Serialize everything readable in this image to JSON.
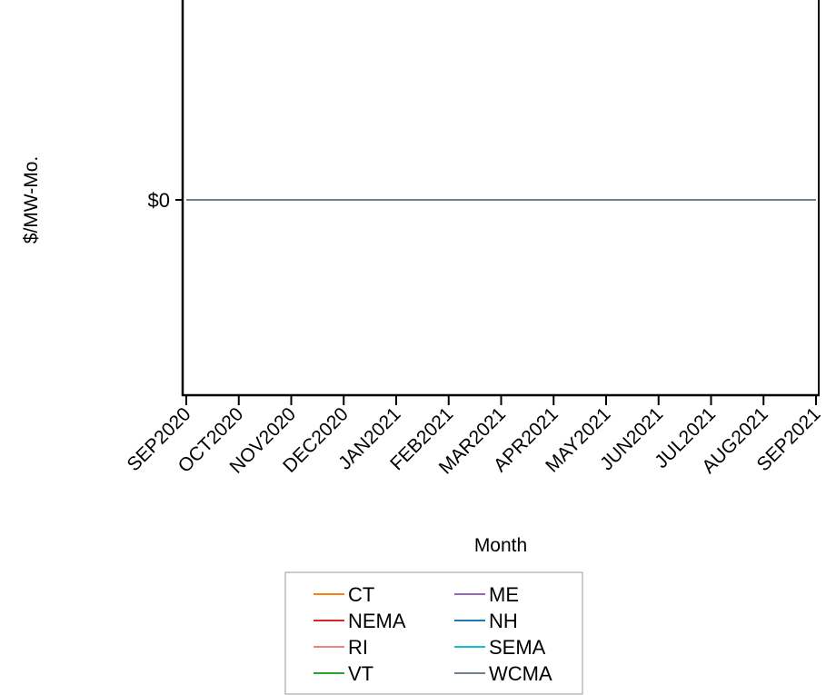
{
  "chart_data": {
    "type": "line",
    "title": "",
    "xlabel": "Month",
    "ylabel": "$/MW-Mo.",
    "categories": [
      "SEP2020",
      "OCT2020",
      "NOV2020",
      "DEC2020",
      "JAN2021",
      "FEB2021",
      "MAR2021",
      "APR2021",
      "MAY2021",
      "JUN2021",
      "JUL2021",
      "AUG2021",
      "SEP2021"
    ],
    "y_ticks": [
      {
        "value": 0,
        "label": "$0"
      }
    ],
    "ylim": [
      -1,
      1
    ],
    "grid": false,
    "legend_position": "bottom",
    "series": [
      {
        "name": "CT",
        "color": "#ff7f0e",
        "values": [
          0,
          0,
          0,
          0,
          0,
          0,
          0,
          0,
          0,
          0,
          0,
          0,
          0
        ]
      },
      {
        "name": "ME",
        "color": "#9467bd",
        "values": [
          0,
          0,
          0,
          0,
          0,
          0,
          0,
          0,
          0,
          0,
          0,
          0,
          0
        ]
      },
      {
        "name": "NEMA",
        "color": "#d62728",
        "values": [
          0,
          0,
          0,
          0,
          0,
          0,
          0,
          0,
          0,
          0,
          0,
          0,
          0
        ]
      },
      {
        "name": "NH",
        "color": "#1f77b4",
        "values": [
          0,
          0,
          0,
          0,
          0,
          0,
          0,
          0,
          0,
          0,
          0,
          0,
          0
        ]
      },
      {
        "name": "RI",
        "color": "#f08080",
        "values": [
          0,
          0,
          0,
          0,
          0,
          0,
          0,
          0,
          0,
          0,
          0,
          0,
          0
        ]
      },
      {
        "name": "SEMA",
        "color": "#17becf",
        "values": [
          0,
          0,
          0,
          0,
          0,
          0,
          0,
          0,
          0,
          0,
          0,
          0,
          0
        ]
      },
      {
        "name": "VT",
        "color": "#2ca02c",
        "values": [
          0,
          0,
          0,
          0,
          0,
          0,
          0,
          0,
          0,
          0,
          0,
          0,
          0
        ]
      },
      {
        "name": "WCMA",
        "color": "#708090",
        "values": [
          0,
          0,
          0,
          0,
          0,
          0,
          0,
          0,
          0,
          0,
          0,
          0,
          0
        ]
      }
    ]
  }
}
